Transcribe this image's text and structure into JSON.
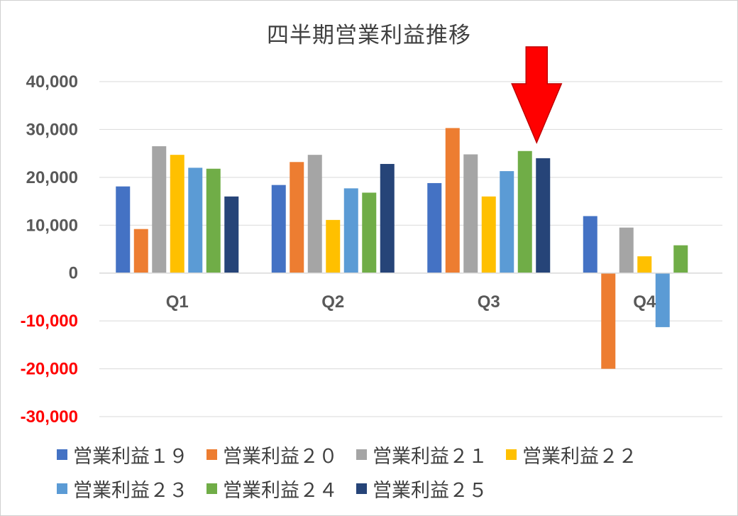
{
  "chart_data": {
    "type": "bar",
    "title": "四半期営業利益推移",
    "categories": [
      "Q1",
      "Q2",
      "Q3",
      "Q4"
    ],
    "ylim": [
      -30000,
      40000
    ],
    "yticks": [
      {
        "value": 40000,
        "label": "40,000",
        "color": "#595959"
      },
      {
        "value": 30000,
        "label": "30,000",
        "color": "#595959"
      },
      {
        "value": 20000,
        "label": "20,000",
        "color": "#595959"
      },
      {
        "value": 10000,
        "label": "10,000",
        "color": "#595959"
      },
      {
        "value": 0,
        "label": "0",
        "color": "#595959"
      },
      {
        "value": -10000,
        "label": "-10,000",
        "color": "#ff0000"
      },
      {
        "value": -20000,
        "label": "-20,000",
        "color": "#ff0000"
      },
      {
        "value": -30000,
        "label": "-30,000",
        "color": "#ff0000"
      }
    ],
    "grid": true,
    "legend_position": "bottom",
    "annotation": {
      "type": "down-arrow",
      "color": "#ff0000",
      "points_to": "Q3 営業利益２５"
    },
    "series": [
      {
        "name": "営業利益１９",
        "color": "#4472c4",
        "values": [
          18100,
          18400,
          18800,
          11900
        ]
      },
      {
        "name": "営業利益２０",
        "color": "#ed7d31",
        "values": [
          9200,
          23200,
          30300,
          -20000
        ]
      },
      {
        "name": "営業利益２１",
        "color": "#a5a5a5",
        "values": [
          26500,
          24700,
          24800,
          9500
        ]
      },
      {
        "name": "営業利益２２",
        "color": "#ffc000",
        "values": [
          24700,
          11100,
          16000,
          3500
        ]
      },
      {
        "name": "営業利益２３",
        "color": "#5b9bd5",
        "values": [
          22000,
          17700,
          21300,
          -11300
        ]
      },
      {
        "name": "営業利益２４",
        "color": "#70ad47",
        "values": [
          21800,
          16800,
          25500,
          5800
        ]
      },
      {
        "name": "営業利益２５",
        "color": "#264478",
        "values": [
          16000,
          22800,
          24000,
          null
        ]
      }
    ]
  }
}
